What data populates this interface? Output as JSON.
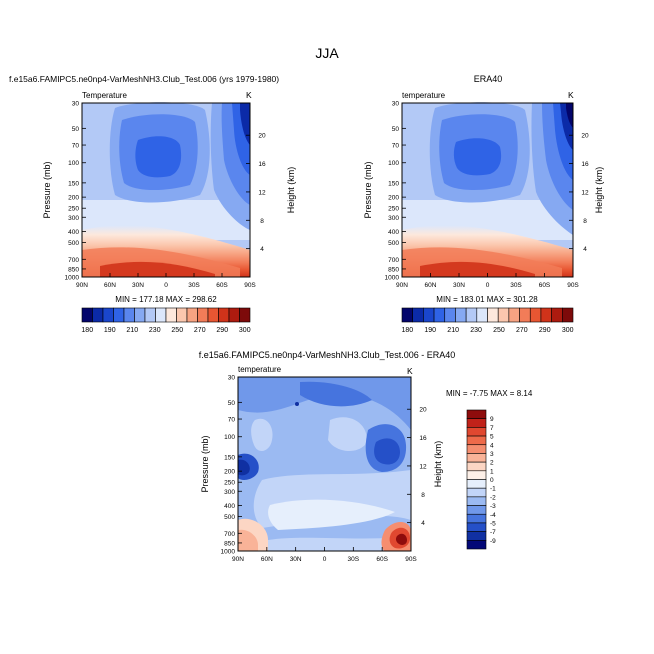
{
  "figure": {
    "title": "JJA"
  },
  "chart_data": [
    {
      "type": "heatmap",
      "title": "f.e15a6.FAMIPC5.ne0np4-VarMeshNH3.Club_Test.006 (yrs 1979-1980)",
      "left_string": "Temperature",
      "right_string": "K",
      "xlabel": "",
      "ylabel": "Pressure (mb)",
      "right_axis_label": "Height (km)",
      "x_ticks": [
        "90N",
        "60N",
        "30N",
        "0",
        "30S",
        "60S",
        "90S"
      ],
      "y_ticks": [
        "30",
        "50",
        "70",
        "100",
        "150",
        "200",
        "250",
        "300",
        "400",
        "500",
        "700",
        "850",
        "1000"
      ],
      "height_ticks": [
        "4",
        "8",
        "12",
        "16",
        "20"
      ],
      "ylim": [
        1000,
        30
      ],
      "min_max_text": "MIN = 177.18  MAX = 298.62",
      "min": 177.18,
      "max": 298.62,
      "colorbar": {
        "orientation": "horizontal",
        "tick_labels": [
          "180",
          "190",
          "210",
          "230",
          "250",
          "270",
          "290",
          "300"
        ],
        "colors": [
          "#03056b",
          "#0b2aa8",
          "#1a46cc",
          "#2f63e6",
          "#5a86ee",
          "#86a9f2",
          "#b3c9f6",
          "#dce7fb",
          "#fde8dc",
          "#fbc7ae",
          "#f7a382",
          "#f27c58",
          "#e85632",
          "#d0331a",
          "#ad1b0f",
          "#7d0a0a"
        ]
      }
    },
    {
      "type": "heatmap",
      "title": "ERA40",
      "left_string": "temperature",
      "right_string": "K",
      "xlabel": "",
      "ylabel": "Pressure (mb)",
      "right_axis_label": "Height (km)",
      "x_ticks": [
        "90N",
        "60N",
        "30N",
        "0",
        "30S",
        "60S",
        "90S"
      ],
      "y_ticks": [
        "30",
        "50",
        "70",
        "100",
        "150",
        "200",
        "250",
        "300",
        "400",
        "500",
        "700",
        "850",
        "1000"
      ],
      "height_ticks": [
        "4",
        "8",
        "12",
        "16",
        "20"
      ],
      "ylim": [
        1000,
        30
      ],
      "min_max_text": "MIN = 183.01  MAX = 301.28",
      "min": 183.01,
      "max": 301.28,
      "colorbar": {
        "orientation": "horizontal",
        "tick_labels": [
          "180",
          "190",
          "210",
          "230",
          "250",
          "270",
          "290",
          "300"
        ],
        "colors": [
          "#03056b",
          "#0b2aa8",
          "#1a46cc",
          "#2f63e6",
          "#5a86ee",
          "#86a9f2",
          "#b3c9f6",
          "#dce7fb",
          "#fde8dc",
          "#fbc7ae",
          "#f7a382",
          "#f27c58",
          "#e85632",
          "#d0331a",
          "#ad1b0f",
          "#7d0a0a"
        ]
      }
    },
    {
      "type": "heatmap",
      "title": "f.e15a6.FAMIPC5.ne0np4-VarMeshNH3.Club_Test.006 - ERA40",
      "left_string": "temperature",
      "right_string": "K",
      "xlabel": "",
      "ylabel": "Pressure (mb)",
      "right_axis_label": "Height (km)",
      "x_ticks": [
        "90N",
        "60N",
        "30N",
        "0",
        "30S",
        "60S",
        "90S"
      ],
      "y_ticks": [
        "30",
        "50",
        "70",
        "100",
        "150",
        "200",
        "250",
        "300",
        "400",
        "500",
        "700",
        "850",
        "1000"
      ],
      "height_ticks": [
        "4",
        "8",
        "12",
        "16",
        "20"
      ],
      "ylim": [
        1000,
        30
      ],
      "min_max_text": "MIN = -7.75  MAX =  8.14",
      "min": -7.75,
      "max": 8.14,
      "colorbar": {
        "orientation": "vertical",
        "tick_labels": [
          "9",
          "7",
          "5",
          "4",
          "3",
          "2",
          "1",
          "0",
          "-1",
          "-2",
          "-3",
          "-4",
          "-5",
          "-7",
          "-9"
        ],
        "colors": [
          "#8e0c0c",
          "#c0221a",
          "#e04830",
          "#ee6a4a",
          "#f58e70",
          "#f9b398",
          "#fcd6c4",
          "#fdf0e8",
          "#e6effc",
          "#c2d5f8",
          "#9bbaf2",
          "#7098ea",
          "#4674de",
          "#2550c8",
          "#1030a2",
          "#030877"
        ]
      }
    }
  ]
}
